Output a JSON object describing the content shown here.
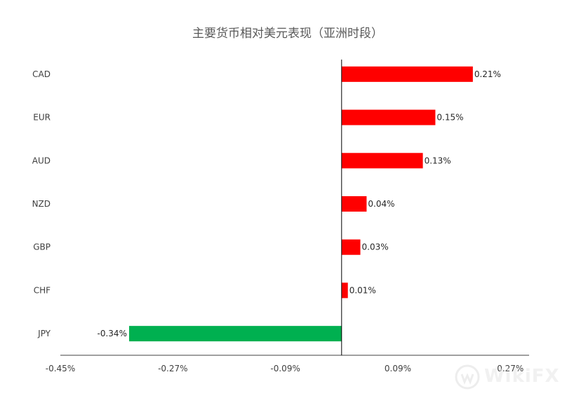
{
  "chart_data": {
    "type": "bar",
    "orientation": "horizontal",
    "title": "主要货币相对美元表现（亚洲时段）",
    "categories": [
      "CAD",
      "EUR",
      "AUD",
      "NZD",
      "GBP",
      "CHF",
      "JPY"
    ],
    "values": [
      0.21,
      0.15,
      0.13,
      0.04,
      0.03,
      0.01,
      -0.34
    ],
    "data_labels": [
      "0.21%",
      "0.15%",
      "0.13%",
      "0.04%",
      "0.03%",
      "0.01%",
      "-0.34%"
    ],
    "xlim": [
      -0.45,
      0.3
    ],
    "x_ticks": [
      -0.45,
      -0.27,
      -0.09,
      0.09,
      0.27
    ],
    "x_tick_labels": [
      "-0.45%",
      "-0.27%",
      "-0.09%",
      "0.09%",
      "0.27%"
    ],
    "colors": {
      "positive": "#ff0000",
      "negative": "#00b050"
    },
    "grid": false,
    "legend": "none"
  },
  "watermark": {
    "text": "WikiFX",
    "icon": "wikifx-logo-icon"
  }
}
